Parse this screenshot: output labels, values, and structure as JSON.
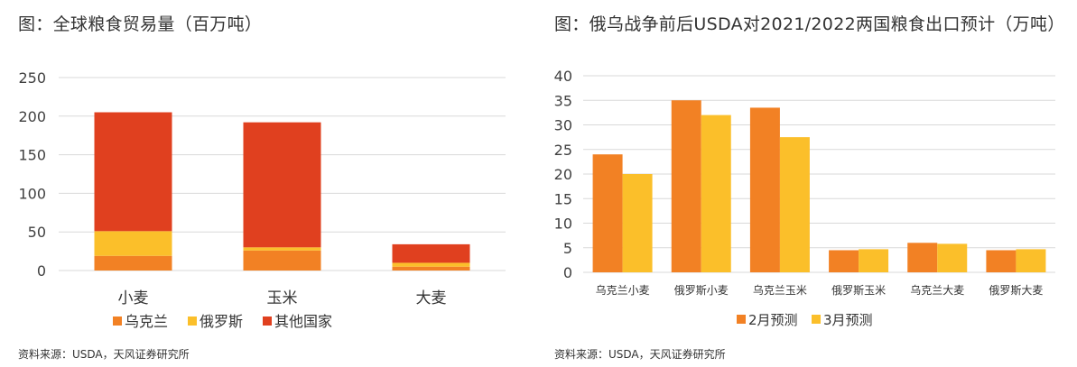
{
  "chart_data": [
    {
      "type": "bar",
      "stacked": true,
      "title": "图：全球粮食贸易量（百万吨）",
      "source": "资料来源：USDA，天风证券研究所",
      "categories": [
        "小麦",
        "玉米",
        "大麦"
      ],
      "ylim": [
        0,
        250
      ],
      "yticks": [
        0,
        50,
        100,
        150,
        200,
        250
      ],
      "grid": true,
      "legend_position": "bottom",
      "series": [
        {
          "name": "乌克兰",
          "color": "#F28124",
          "values": [
            19,
            26,
            5
          ]
        },
        {
          "name": "俄罗斯",
          "color": "#FBBF2A",
          "values": [
            32,
            4,
            5
          ]
        },
        {
          "name": "其他国家",
          "color": "#E0401F",
          "values": [
            154,
            162,
            24
          ]
        }
      ]
    },
    {
      "type": "bar",
      "stacked": false,
      "title": "图：俄乌战争前后USDA对2021/2022两国粮食出口预计（万吨）",
      "source": "资料来源：USDA，天风证券研究所",
      "categories": [
        "乌克兰小麦",
        "俄罗斯小麦",
        "乌克兰玉米",
        "俄罗斯玉米",
        "乌克兰大麦",
        "俄罗斯大麦"
      ],
      "ylim": [
        0,
        40
      ],
      "yticks": [
        0,
        5,
        10,
        15,
        20,
        25,
        30,
        35,
        40
      ],
      "grid": true,
      "legend_position": "bottom",
      "series": [
        {
          "name": "2月预测",
          "color": "#F28124",
          "values": [
            24,
            35,
            33.5,
            4.5,
            6,
            4.5
          ]
        },
        {
          "name": "3月预测",
          "color": "#FBBF2A",
          "values": [
            20,
            32,
            27.5,
            4.7,
            5.8,
            4.7
          ]
        }
      ]
    }
  ]
}
